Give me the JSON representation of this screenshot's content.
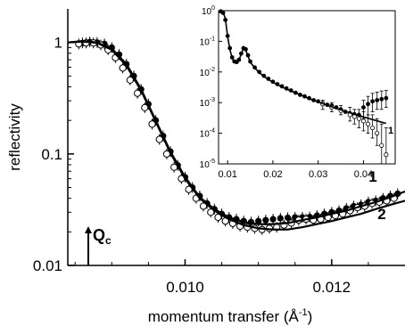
{
  "chart_data": [
    {
      "type": "scatter",
      "title": "",
      "xlabel": "momentum transfer (Å⁻¹)",
      "xlabel_parts": {
        "main": "momentum transfer (Å",
        "sup": "-1",
        "close": ")"
      },
      "ylabel": "reflectivity",
      "xscale": "linear",
      "yscale": "log",
      "xlim": [
        0.0084,
        0.013
      ],
      "ylim": [
        0.01,
        2.0
      ],
      "xticks": [
        0.01,
        0.012
      ],
      "xtick_labels": [
        "0.010",
        "0.012"
      ],
      "yticks": [
        0.01,
        0.1,
        1
      ],
      "ytick_labels": [
        "0.01",
        "0.1",
        "1"
      ],
      "curve_labels": [
        "1",
        "2"
      ],
      "annotation": {
        "text": "Q",
        "subscript": "c",
        "x": 0.00868
      },
      "series": [
        {
          "marker": "filled-circle",
          "x": [
            0.0086,
            0.0087,
            0.0088,
            0.0089,
            0.009,
            0.0091,
            0.0092,
            0.0093,
            0.0094,
            0.0095,
            0.0096,
            0.0097,
            0.0098,
            0.0099,
            0.01,
            0.0101,
            0.0102,
            0.0103,
            0.0104,
            0.0105,
            0.0106,
            0.0107,
            0.0108,
            0.0109,
            0.011,
            0.0111,
            0.0112,
            0.0113,
            0.0114,
            0.0115,
            0.0116,
            0.0117,
            0.0118,
            0.0119,
            0.012,
            0.0121,
            0.0122,
            0.0123,
            0.0124,
            0.0125,
            0.0126,
            0.0127,
            0.0128,
            0.0129
          ],
          "y": [
            0.99,
            1.01,
            1.0,
            0.97,
            0.9,
            0.78,
            0.64,
            0.5,
            0.38,
            0.28,
            0.2,
            0.145,
            0.105,
            0.079,
            0.062,
            0.05,
            0.042,
            0.036,
            0.032,
            0.029,
            0.027,
            0.026,
            0.025,
            0.0245,
            0.025,
            0.0255,
            0.026,
            0.0265,
            0.0268,
            0.027,
            0.027,
            0.0272,
            0.028,
            0.029,
            0.03,
            0.031,
            0.0325,
            0.034,
            0.035,
            0.037,
            0.038,
            0.04,
            0.042,
            0.044
          ]
        },
        {
          "marker": "open-circle",
          "x": [
            0.00855,
            0.00865,
            0.00875,
            0.00885,
            0.00895,
            0.00905,
            0.00915,
            0.00925,
            0.00935,
            0.00945,
            0.00955,
            0.00965,
            0.00975,
            0.00985,
            0.00995,
            0.01005,
            0.01015,
            0.01025,
            0.01035,
            0.01045,
            0.01055,
            0.01065,
            0.01075,
            0.01085,
            0.01095,
            0.01105,
            0.01115,
            0.01125,
            0.01135,
            0.01145,
            0.01155,
            0.01165,
            0.01175,
            0.01185,
            0.01195,
            0.01205,
            0.01215,
            0.01225,
            0.01235,
            0.01245,
            0.01255,
            0.01265,
            0.01275,
            0.01285
          ],
          "y": [
            0.97,
            0.99,
            0.99,
            0.95,
            0.86,
            0.73,
            0.59,
            0.46,
            0.35,
            0.26,
            0.185,
            0.135,
            0.1,
            0.076,
            0.06,
            0.048,
            0.04,
            0.034,
            0.03,
            0.027,
            0.025,
            0.0238,
            0.0225,
            0.022,
            0.0215,
            0.021,
            0.0215,
            0.022,
            0.023,
            0.024,
            0.0255,
            0.026,
            0.0255,
            0.026,
            0.027,
            0.028,
            0.029,
            0.031,
            0.033,
            0.034,
            0.036,
            0.037,
            0.038,
            0.04
          ]
        },
        {
          "name": "1",
          "style": "line",
          "x": [
            0.0084,
            0.0086,
            0.0088,
            0.009,
            0.0092,
            0.0094,
            0.0096,
            0.0098,
            0.01,
            0.0102,
            0.0104,
            0.0106,
            0.0108,
            0.011,
            0.0112,
            0.0114,
            0.0116,
            0.0118,
            0.012,
            0.0122,
            0.0124,
            0.0126,
            0.0128,
            0.013
          ],
          "y": [
            1.0,
            1.03,
            1.0,
            0.88,
            0.64,
            0.38,
            0.2,
            0.105,
            0.062,
            0.041,
            0.032,
            0.027,
            0.0245,
            0.0235,
            0.0235,
            0.024,
            0.0255,
            0.027,
            0.029,
            0.031,
            0.034,
            0.037,
            0.041,
            0.046
          ]
        },
        {
          "name": "2",
          "style": "line",
          "x": [
            0.0084,
            0.0086,
            0.0088,
            0.009,
            0.0092,
            0.0094,
            0.0096,
            0.0098,
            0.01,
            0.0102,
            0.0104,
            0.0106,
            0.0108,
            0.011,
            0.0112,
            0.0114,
            0.0116,
            0.0118,
            0.012,
            0.0122,
            0.0124,
            0.0126,
            0.0128,
            0.013
          ],
          "y": [
            1.0,
            1.02,
            0.99,
            0.86,
            0.62,
            0.37,
            0.195,
            0.102,
            0.06,
            0.04,
            0.031,
            0.026,
            0.023,
            0.0215,
            0.021,
            0.021,
            0.022,
            0.0235,
            0.025,
            0.027,
            0.029,
            0.032,
            0.035,
            0.038
          ]
        }
      ]
    },
    {
      "type": "scatter",
      "title": "",
      "xlabel": "",
      "ylabel": "",
      "xscale": "linear",
      "yscale": "log",
      "xlim": [
        0.008,
        0.047
      ],
      "ylim": [
        1e-05,
        1
      ],
      "xticks": [
        0.01,
        0.02,
        0.03,
        0.04
      ],
      "xtick_labels": [
        "0.01",
        "0.02",
        "0.03",
        "0.04"
      ],
      "yticks": [
        1e-05,
        0.0001,
        0.001,
        0.01,
        0.1,
        1
      ],
      "ytick_labels": [
        {
          "base": "10",
          "exp": "-5"
        },
        {
          "base": "10",
          "exp": "-4"
        },
        {
          "base": "10",
          "exp": "-3"
        },
        {
          "base": "10",
          "exp": "-2"
        },
        {
          "base": "10",
          "exp": "-1"
        },
        {
          "base": "10",
          "exp": "0"
        }
      ],
      "curve_labels": [
        "1"
      ],
      "series": [
        {
          "marker": "filled-circle",
          "x": [
            0.0085,
            0.009,
            0.0095,
            0.01,
            0.0105,
            0.011,
            0.0115,
            0.012,
            0.0125,
            0.013,
            0.0135,
            0.014,
            0.0145,
            0.015,
            0.016,
            0.017,
            0.018,
            0.019,
            0.02,
            0.021,
            0.022,
            0.023,
            0.024,
            0.025,
            0.026,
            0.027,
            0.028,
            0.029,
            0.03,
            0.031,
            0.032,
            0.033,
            0.034,
            0.035,
            0.036,
            0.037,
            0.038,
            0.039,
            0.04,
            0.041,
            0.042,
            0.043,
            0.044,
            0.045
          ],
          "y": [
            0.95,
            0.85,
            0.5,
            0.15,
            0.06,
            0.03,
            0.022,
            0.021,
            0.025,
            0.04,
            0.06,
            0.055,
            0.035,
            0.022,
            0.014,
            0.01,
            0.0075,
            0.006,
            0.0048,
            0.004,
            0.0034,
            0.0029,
            0.0025,
            0.0021,
            0.0018,
            0.0016,
            0.0014,
            0.0012,
            0.0011,
            0.00095,
            0.00085,
            0.0008,
            0.0007,
            0.0006,
            0.0005,
            0.00045,
            0.00042,
            0.0004,
            0.0007,
            0.0009,
            0.0011,
            0.0012,
            0.0013,
            0.0014
          ],
          "error_upper": [
            null,
            null,
            null,
            null,
            null,
            null,
            null,
            null,
            null,
            null,
            null,
            null,
            null,
            null,
            null,
            null,
            null,
            null,
            null,
            null,
            null,
            null,
            null,
            null,
            null,
            null,
            null,
            null,
            null,
            null,
            null,
            null,
            null,
            null,
            null,
            null,
            null,
            null,
            0.0012,
            0.0016,
            0.002,
            0.0022,
            0.0024,
            0.0025
          ],
          "error_lower": [
            null,
            null,
            null,
            null,
            null,
            null,
            null,
            null,
            null,
            null,
            null,
            null,
            null,
            null,
            null,
            null,
            null,
            null,
            null,
            null,
            null,
            null,
            null,
            null,
            null,
            null,
            null,
            null,
            null,
            null,
            null,
            null,
            null,
            null,
            null,
            null,
            null,
            null,
            0.0003,
            0.0004,
            0.0005,
            0.0006,
            0.0006,
            0.0007
          ]
        },
        {
          "marker": "open-circle",
          "x": [
            0.031,
            0.033,
            0.035,
            0.037,
            0.038,
            0.039,
            0.04,
            0.041,
            0.042,
            0.043,
            0.044,
            0.045
          ],
          "y": [
            0.0009,
            0.0007,
            0.00055,
            0.0004,
            0.00035,
            0.0003,
            0.00025,
            0.0002,
            0.00015,
            0.0001,
            4e-05,
            2e-05
          ],
          "error_upper": [
            0.0012,
            0.001,
            0.0008,
            0.0007,
            0.0006,
            0.0006,
            0.0005,
            0.0004,
            0.0004,
            0.0003,
            0.0002,
            0.00015
          ],
          "error_lower": [
            0.0006,
            0.0005,
            0.0004,
            0.00025,
            0.0002,
            0.00015,
            0.00012,
            0.0001,
            7e-05,
            4e-05,
            1e-05,
            1e-05
          ]
        },
        {
          "name": "1",
          "style": "line",
          "x": [
            0.0085,
            0.009,
            0.0095,
            0.01,
            0.0105,
            0.011,
            0.0115,
            0.012,
            0.0125,
            0.013,
            0.0135,
            0.014,
            0.0145,
            0.015,
            0.016,
            0.017,
            0.018,
            0.019,
            0.02,
            0.022,
            0.024,
            0.026,
            0.028,
            0.03,
            0.032,
            0.034,
            0.036,
            0.038,
            0.04,
            0.042,
            0.044,
            0.045
          ],
          "y": [
            1.0,
            0.9,
            0.55,
            0.14,
            0.055,
            0.028,
            0.021,
            0.02,
            0.024,
            0.038,
            0.058,
            0.052,
            0.033,
            0.021,
            0.0135,
            0.0095,
            0.0072,
            0.0057,
            0.0046,
            0.0032,
            0.0024,
            0.0018,
            0.00135,
            0.00105,
            0.00082,
            0.00065,
            0.00052,
            0.00042,
            0.00034,
            0.00028,
            0.00023,
            0.00021
          ]
        }
      ]
    }
  ]
}
